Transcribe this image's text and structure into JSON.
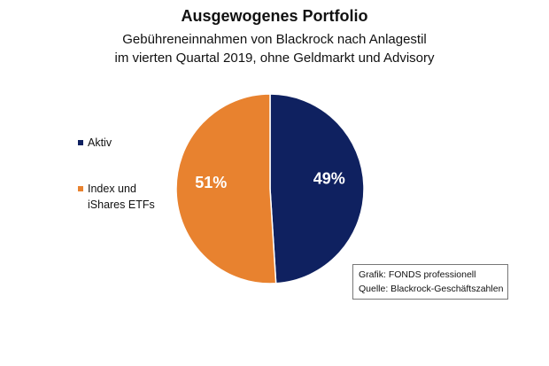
{
  "chart_data": {
    "type": "pie",
    "title": "Ausgewogenes Portfolio",
    "subtitle": [
      "Gebühreneinnahmen von Blackrock nach Anlagestil",
      "im vierten Quartal 2019, ohne Geldmarkt und Advisory"
    ],
    "slices": [
      {
        "label": "Aktiv",
        "value": 49,
        "display": "49%",
        "color": "#0f2160"
      },
      {
        "label": "Index und iShares ETFs",
        "label_lines": [
          "Index und",
          "iShares ETFs"
        ],
        "value": 51,
        "display": "51%",
        "color": "#e8822f"
      }
    ],
    "legend_position": "left",
    "source_box": {
      "line1": "Grafik: FONDS professionell",
      "line2": "Quelle: Blackrock-Geschäftszahlen"
    }
  }
}
